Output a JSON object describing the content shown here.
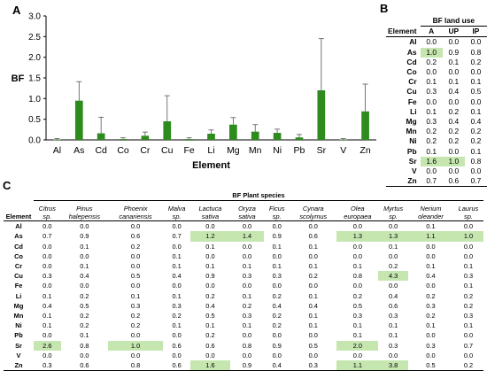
{
  "panels": {
    "a": "A",
    "b": "B",
    "c": "C"
  },
  "chart_data": {
    "type": "bar",
    "categories": [
      "Al",
      "As",
      "Cd",
      "Co",
      "Cr",
      "Cu",
      "Fe",
      "Li",
      "Mg",
      "Mn",
      "Ni",
      "Pb",
      "Sr",
      "V",
      "Zn"
    ],
    "values": [
      0.01,
      0.95,
      0.16,
      0.02,
      0.1,
      0.45,
      0.02,
      0.15,
      0.37,
      0.2,
      0.17,
      0.06,
      1.2,
      0.01,
      0.69
    ],
    "errors": [
      0.02,
      0.46,
      0.39,
      0.03,
      0.09,
      0.62,
      0.03,
      0.09,
      0.17,
      0.17,
      0.09,
      0.07,
      1.25,
      0.02,
      0.66
    ],
    "xlabel": "Element",
    "ylabel": "BF",
    "ylim": [
      0,
      3
    ],
    "yticks": [
      "0.0",
      "0.5",
      "1.0",
      "1.5",
      "2.0",
      "2.5",
      "3.0"
    ],
    "bar_color": "#2e8b1e",
    "grid": false,
    "legend": "none"
  },
  "land_use": {
    "title": "BF land use",
    "element_header": "Element",
    "columns": [
      "A",
      "UP",
      "IP"
    ],
    "rows": [
      {
        "el": "Al",
        "vals": [
          "0.0",
          "0.0",
          "0.0"
        ],
        "hl": [
          false,
          false,
          false
        ]
      },
      {
        "el": "As",
        "vals": [
          "1.0",
          "0.9",
          "0.8"
        ],
        "hl": [
          true,
          false,
          false
        ]
      },
      {
        "el": "Cd",
        "vals": [
          "0.2",
          "0.1",
          "0.2"
        ],
        "hl": [
          false,
          false,
          false
        ]
      },
      {
        "el": "Co",
        "vals": [
          "0.0",
          "0.0",
          "0.0"
        ],
        "hl": [
          false,
          false,
          false
        ]
      },
      {
        "el": "Cr",
        "vals": [
          "0.1",
          "0.1",
          "0.1"
        ],
        "hl": [
          false,
          false,
          false
        ]
      },
      {
        "el": "Cu",
        "vals": [
          "0.3",
          "0.4",
          "0.5"
        ],
        "hl": [
          false,
          false,
          false
        ]
      },
      {
        "el": "Fe",
        "vals": [
          "0.0",
          "0.0",
          "0.0"
        ],
        "hl": [
          false,
          false,
          false
        ]
      },
      {
        "el": "Li",
        "vals": [
          "0.1",
          "0.2",
          "0.1"
        ],
        "hl": [
          false,
          false,
          false
        ]
      },
      {
        "el": "Mg",
        "vals": [
          "0.3",
          "0.4",
          "0.4"
        ],
        "hl": [
          false,
          false,
          false
        ]
      },
      {
        "el": "Mn",
        "vals": [
          "0.2",
          "0.2",
          "0.2"
        ],
        "hl": [
          false,
          false,
          false
        ]
      },
      {
        "el": "Ni",
        "vals": [
          "0.2",
          "0.2",
          "0.2"
        ],
        "hl": [
          false,
          false,
          false
        ]
      },
      {
        "el": "Pb",
        "vals": [
          "0.1",
          "0.0",
          "0.1"
        ],
        "hl": [
          false,
          false,
          false
        ]
      },
      {
        "el": "Sr",
        "vals": [
          "1.6",
          "1.0",
          "0.8"
        ],
        "hl": [
          true,
          true,
          false
        ]
      },
      {
        "el": "V",
        "vals": [
          "0.0",
          "0.0",
          "0.0"
        ],
        "hl": [
          false,
          false,
          false
        ]
      },
      {
        "el": "Zn",
        "vals": [
          "0.7",
          "0.6",
          "0.7"
        ],
        "hl": [
          false,
          false,
          false
        ]
      }
    ]
  },
  "plant_species": {
    "title": "BF Plant species",
    "element_header": "Element",
    "species": [
      "Citrus sp.",
      "Pinus halepensis",
      "Phoenix canariensis",
      "Malva sp.",
      "Lactuca sativa",
      "Oryza sativa",
      "Ficus sp.",
      "Cynara scolymus",
      "Olea europaea",
      "Myrtus sp.",
      "Nerium oleander",
      "Laurus sp."
    ],
    "rows": [
      {
        "el": "Al",
        "vals": [
          "0.0",
          "0.0",
          "0.0",
          "0.0",
          "0.0",
          "0.0",
          "0.0",
          "0.0",
          "0.0",
          "0.0",
          "0.1",
          "0.0"
        ],
        "hl": []
      },
      {
        "el": "As",
        "vals": [
          "0.7",
          "0.9",
          "0.6",
          "0.7",
          "1.2",
          "1.4",
          "0.9",
          "0.6",
          "1.3",
          "1.3",
          "1.1",
          "1.0"
        ],
        "hl": [
          4,
          5,
          8,
          9,
          10,
          11
        ]
      },
      {
        "el": "Cd",
        "vals": [
          "0.0",
          "0.1",
          "0.2",
          "0.0",
          "0.1",
          "0.0",
          "0.1",
          "0.1",
          "0.0",
          "0.1",
          "0.0",
          "0.0"
        ],
        "hl": []
      },
      {
        "el": "Co",
        "vals": [
          "0.0",
          "0.0",
          "0.0",
          "0.1",
          "0.0",
          "0.0",
          "0.0",
          "0.0",
          "0.0",
          "0.0",
          "0.0",
          "0.0"
        ],
        "hl": []
      },
      {
        "el": "Cr",
        "vals": [
          "0.0",
          "0.1",
          "0.0",
          "0.1",
          "0.1",
          "0.1",
          "0.1",
          "0.1",
          "0.1",
          "0.2",
          "0.1",
          "0.1"
        ],
        "hl": []
      },
      {
        "el": "Cu",
        "vals": [
          "0.3",
          "0.4",
          "0.5",
          "0.4",
          "0.9",
          "0.3",
          "0.3",
          "0.2",
          "0.8",
          "4.3",
          "0.4",
          "0.3"
        ],
        "hl": [
          9
        ]
      },
      {
        "el": "Fe",
        "vals": [
          "0.0",
          "0.0",
          "0.0",
          "0.0",
          "0.0",
          "0.0",
          "0.0",
          "0.0",
          "0.0",
          "0.0",
          "0.0",
          "0.1"
        ],
        "hl": []
      },
      {
        "el": "Li",
        "vals": [
          "0.1",
          "0.2",
          "0.1",
          "0.1",
          "0.2",
          "0.1",
          "0.2",
          "0.1",
          "0.2",
          "0.4",
          "0.2",
          "0.2"
        ],
        "hl": []
      },
      {
        "el": "Mg",
        "vals": [
          "0.4",
          "0.5",
          "0.3",
          "0.3",
          "0.4",
          "0.2",
          "0.4",
          "0.4",
          "0.5",
          "0.6",
          "0.3",
          "0.2"
        ],
        "hl": []
      },
      {
        "el": "Mn",
        "vals": [
          "0.1",
          "0.2",
          "0.2",
          "0.2",
          "0.5",
          "0.3",
          "0.2",
          "0.1",
          "0.3",
          "0.3",
          "0.2",
          "0.3"
        ],
        "hl": []
      },
      {
        "el": "Ni",
        "vals": [
          "0.1",
          "0.2",
          "0.2",
          "0.1",
          "0.1",
          "0.1",
          "0.2",
          "0.1",
          "0.1",
          "0.1",
          "0.1",
          "0.1"
        ],
        "hl": []
      },
      {
        "el": "Pb",
        "vals": [
          "0.0",
          "0.1",
          "0.0",
          "0.0",
          "0.2",
          "0.0",
          "0.0",
          "0.0",
          "0.1",
          "0.1",
          "0.0",
          "0.0"
        ],
        "hl": []
      },
      {
        "el": "Sr",
        "vals": [
          "2.6",
          "0.8",
          "1.0",
          "0.6",
          "0.6",
          "0.8",
          "0.9",
          "0.5",
          "2.0",
          "0.3",
          "0.3",
          "0.7"
        ],
        "hl": [
          0,
          2,
          8
        ]
      },
      {
        "el": "V",
        "vals": [
          "0.0",
          "0.0",
          "0.0",
          "0.0",
          "0.0",
          "0.0",
          "0.0",
          "0.0",
          "0.0",
          "0.0",
          "0.0",
          "0.0"
        ],
        "hl": []
      },
      {
        "el": "Zn",
        "vals": [
          "0.3",
          "0.6",
          "0.8",
          "0.6",
          "1.6",
          "0.9",
          "0.4",
          "0.3",
          "1.1",
          "3.8",
          "0.5",
          "0.2"
        ],
        "hl": [
          4,
          8,
          9
        ]
      }
    ]
  }
}
